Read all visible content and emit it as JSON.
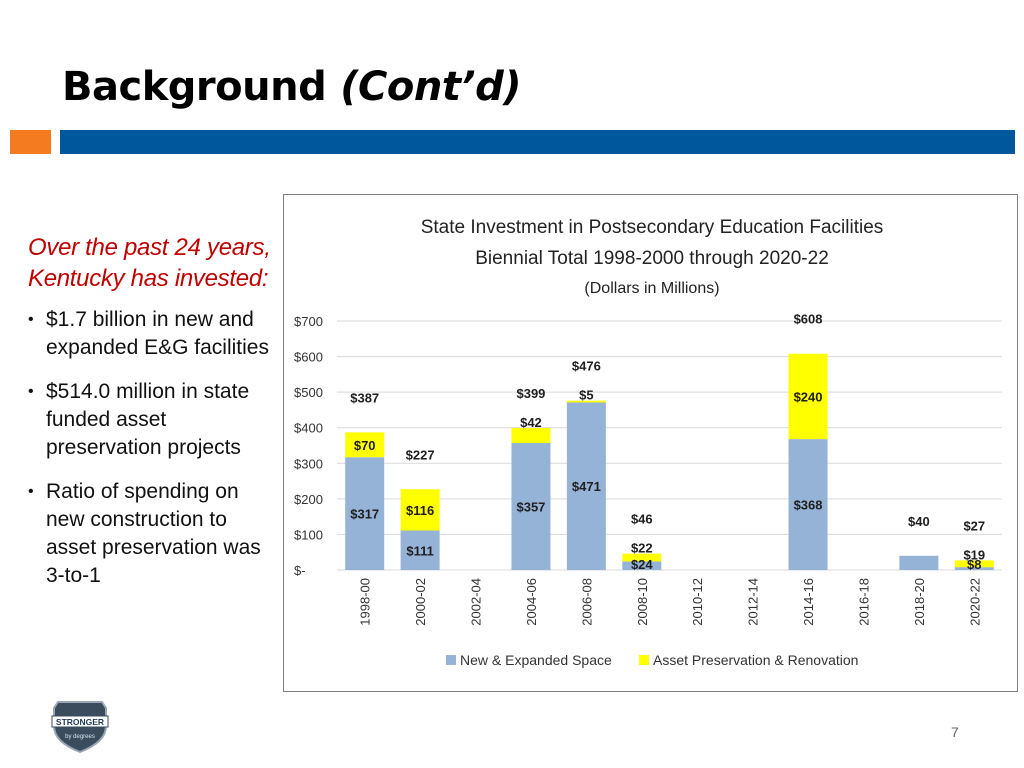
{
  "slide": {
    "title": "Background",
    "subtitle": "(Cont’d)",
    "page_number": "7",
    "colors": {
      "accent_orange": "#F47B20",
      "accent_blue": "#00579C",
      "intro_red": "#C00000"
    }
  },
  "left_panel": {
    "intro": "Over the past 24 years, Kentucky has invested:",
    "bullets": [
      "$1.7 billion in new and expanded E&G facilities",
      "$514.0 million in state funded asset preservation projects",
      "Ratio of spending on new construction to asset preservation was 3-to-1"
    ]
  },
  "logo": {
    "text_main": "STRONGER",
    "text_sub": "by degrees"
  },
  "chart_data": {
    "type": "bar",
    "stacked": true,
    "title": "State Investment in Postsecondary Education Facilities",
    "title_line2": "Biennial Total 1998-2000 through 2020-22",
    "subtitle": "(Dollars in Millions)",
    "categories": [
      "1998-00",
      "2000-02",
      "2002-04",
      "2004-06",
      "2006-08",
      "2008-10",
      "2010-12",
      "2012-14",
      "2014-16",
      "2016-18",
      "2018-20",
      "2020-22"
    ],
    "series": [
      {
        "name": "New & Expanded Space",
        "color": "#95B3D7",
        "values": [
          317,
          111,
          0,
          357,
          471,
          24,
          0,
          0,
          368,
          0,
          40,
          8
        ]
      },
      {
        "name": "Asset Preservation & Renovation",
        "color": "#FFFF00",
        "values": [
          70,
          116,
          0,
          42,
          5,
          22,
          0,
          0,
          240,
          0,
          0,
          19
        ]
      }
    ],
    "totals": [
      387,
      227,
      null,
      399,
      476,
      46,
      null,
      null,
      608,
      null,
      40,
      27
    ],
    "segment_labels": {
      "New & Expanded Space": [
        "$317",
        "$111",
        "",
        "$357",
        "$471",
        "$24",
        "",
        "",
        "$368",
        "",
        "",
        "$8"
      ],
      "Asset Preservation & Renovation": [
        "$70",
        "$116",
        "",
        "$42",
        "$5",
        "$22",
        "",
        "",
        "$240",
        "",
        "",
        "$19"
      ]
    },
    "total_labels": [
      "$387",
      "$227",
      "",
      "$399",
      "$476",
      "$46",
      "",
      "",
      "$608",
      "",
      "$40",
      "$27"
    ],
    "y_ticks": [
      0,
      100,
      200,
      300,
      400,
      500,
      600,
      700
    ],
    "y_tick_labels": [
      "$-",
      "$100",
      "$200",
      "$300",
      "$400",
      "$500",
      "$600",
      "$700"
    ],
    "ylim": [
      0,
      700
    ],
    "grid": true,
    "legend_position": "bottom"
  }
}
